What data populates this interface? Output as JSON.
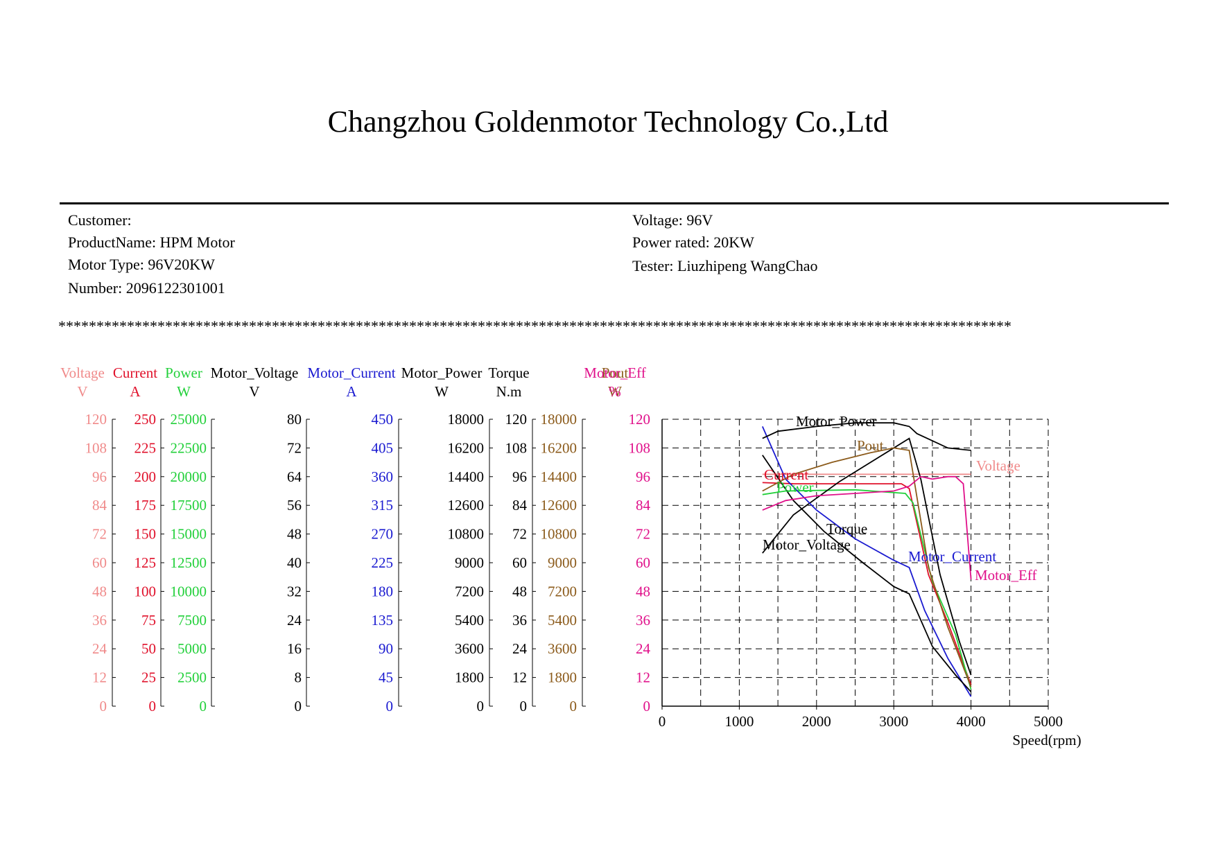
{
  "report": {
    "company": "Changzhou Goldenmotor Technology Co.,Ltd",
    "customer_label": "Customer:",
    "product_name": "ProductName: HPM Motor",
    "motor_type": "Motor Type: 96V20KW",
    "number": "Number: 2096122301001",
    "voltage": "Voltage: 96V",
    "power_rated": "Power rated: 20KW",
    "tester": "Tester: Liuzhipeng WangChao",
    "separator": "*****************************************************************************************************************************"
  },
  "chart_data": {
    "type": "line",
    "xlabel": "Speed(rpm)",
    "xlim": [
      0,
      5000
    ],
    "xticks": [
      "0",
      "1000",
      "2000",
      "3000",
      "4000",
      "5000"
    ],
    "axes": [
      {
        "name": "Voltage",
        "unit": "V",
        "color": "#f08a8a",
        "ticks": [
          "120",
          "108",
          "96",
          "84",
          "72",
          "60",
          "48",
          "36",
          "24",
          "12",
          "0"
        ]
      },
      {
        "name": "Current",
        "unit": "A",
        "color": "#e0102a",
        "ticks": [
          "250",
          "225",
          "200",
          "175",
          "150",
          "125",
          "100",
          "75",
          "50",
          "25",
          "0"
        ]
      },
      {
        "name": "Power",
        "unit": "W",
        "color": "#22d03a",
        "ticks": [
          "25000",
          "22500",
          "20000",
          "17500",
          "15000",
          "12500",
          "10000",
          "7500",
          "5000",
          "2500",
          "0"
        ]
      },
      {
        "name": "Motor_Voltage",
        "unit": "V",
        "color": "#000000",
        "ticks": [
          "80",
          "72",
          "64",
          "56",
          "48",
          "40",
          "32",
          "24",
          "16",
          "8",
          "0"
        ]
      },
      {
        "name": "Motor_Current",
        "unit": "A",
        "color": "#1a1ad0",
        "ticks": [
          "450",
          "405",
          "360",
          "315",
          "270",
          "225",
          "180",
          "135",
          "90",
          "45",
          "0"
        ]
      },
      {
        "name": "Motor_Power",
        "unit": "W",
        "color": "#000000",
        "ticks": [
          "18000",
          "16200",
          "14400",
          "12600",
          "10800",
          "9000",
          "7200",
          "5400",
          "3600",
          "1800",
          "0"
        ]
      },
      {
        "name": "Torque",
        "unit": "N.m",
        "color": "#000000",
        "ticks": [
          "120",
          "108",
          "96",
          "84",
          "72",
          "60",
          "48",
          "36",
          "24",
          "12",
          "0"
        ]
      },
      {
        "name": "Pout",
        "unit": "W",
        "color": "#8b5a1a",
        "ticks": [
          "18000",
          "16200",
          "14400",
          "12600",
          "10800",
          "9000",
          "7200",
          "5400",
          "3600",
          "1800",
          "0"
        ]
      },
      {
        "name": "Motor_Eff",
        "unit": "%",
        "color": "#e0108a",
        "ticks": [
          "120",
          "108",
          "96",
          "84",
          "72",
          "60",
          "48",
          "36",
          "24",
          "12",
          "0"
        ]
      }
    ],
    "main_ylim": [
      0,
      120
    ],
    "main_yticks": [
      "120",
      "108",
      "96",
      "84",
      "72",
      "60",
      "48",
      "36",
      "24",
      "12",
      "0"
    ],
    "main_ytick_color": "#e0108a",
    "series": [
      {
        "name": "Voltage",
        "label": "Voltage",
        "color": "#f08a8a",
        "points": [
          [
            1300,
            97
          ],
          [
            2000,
            97
          ],
          [
            3000,
            97
          ],
          [
            3500,
            97
          ],
          [
            4000,
            97
          ]
        ]
      },
      {
        "name": "Current",
        "label": "Current",
        "color": "#e0102a",
        "points": [
          [
            1300,
            93.5
          ],
          [
            1700,
            93
          ],
          [
            2500,
            93
          ],
          [
            3100,
            93
          ],
          [
            3200,
            91
          ],
          [
            3450,
            55
          ],
          [
            3700,
            35
          ],
          [
            4000,
            9
          ]
        ]
      },
      {
        "name": "Power",
        "label": "Power",
        "color": "#22d03a",
        "points": [
          [
            1300,
            88.5
          ],
          [
            1600,
            90
          ],
          [
            2500,
            90.5
          ],
          [
            3150,
            89
          ],
          [
            3250,
            85
          ],
          [
            3500,
            52
          ],
          [
            3800,
            30
          ],
          [
            4000,
            7
          ]
        ]
      },
      {
        "name": "Motor_Voltage",
        "label": "Motor_Voltage",
        "color": "#000000",
        "points": [
          [
            1300,
            64
          ],
          [
            1700,
            80
          ],
          [
            2300,
            94
          ],
          [
            2900,
            106
          ],
          [
            3200,
            112
          ],
          [
            3350,
            95
          ],
          [
            3600,
            55
          ],
          [
            3850,
            27
          ],
          [
            4000,
            13
          ]
        ]
      },
      {
        "name": "Motor_Current",
        "label": "Motor_Current",
        "color": "#1a1ad0",
        "points": [
          [
            1300,
            117
          ],
          [
            1600,
            95
          ],
          [
            2000,
            82
          ],
          [
            2500,
            70
          ],
          [
            3000,
            61
          ],
          [
            3200,
            58
          ],
          [
            3400,
            40
          ],
          [
            3700,
            20
          ],
          [
            4000,
            4
          ]
        ]
      },
      {
        "name": "Motor_Power",
        "label": "Motor_Power",
        "color": "#000000",
        "points": [
          [
            1300,
            112
          ],
          [
            1500,
            115
          ],
          [
            2000,
            117
          ],
          [
            2500,
            118.5
          ],
          [
            3000,
            118.5
          ],
          [
            3200,
            117
          ],
          [
            3300,
            114
          ],
          [
            3700,
            108
          ],
          [
            4000,
            107
          ]
        ]
      },
      {
        "name": "Torque",
        "label": "Torque",
        "color": "#000000",
        "points": [
          [
            1300,
            105
          ],
          [
            1700,
            86
          ],
          [
            2100,
            73
          ],
          [
            2600,
            60
          ],
          [
            3000,
            50
          ],
          [
            3200,
            47
          ],
          [
            3500,
            25
          ],
          [
            3800,
            13
          ],
          [
            4000,
            6
          ]
        ]
      },
      {
        "name": "Pout",
        "label": "Pout",
        "color": "#8b5a1a",
        "points": [
          [
            1300,
            90
          ],
          [
            1700,
            97
          ],
          [
            2200,
            102
          ],
          [
            2700,
            106
          ],
          [
            3000,
            108
          ],
          [
            3200,
            107
          ],
          [
            3450,
            58
          ],
          [
            3700,
            33
          ],
          [
            4000,
            8
          ]
        ]
      },
      {
        "name": "Motor_Eff",
        "label": "Motor_Eff",
        "color": "#e0108a",
        "points": [
          [
            1300,
            82
          ],
          [
            1600,
            86
          ],
          [
            2000,
            88
          ],
          [
            2500,
            89
          ],
          [
            3000,
            90
          ],
          [
            3200,
            92
          ],
          [
            3350,
            96
          ],
          [
            3500,
            95
          ],
          [
            3700,
            96
          ],
          [
            3800,
            96
          ],
          [
            3900,
            93
          ],
          [
            4000,
            53
          ]
        ]
      }
    ]
  }
}
